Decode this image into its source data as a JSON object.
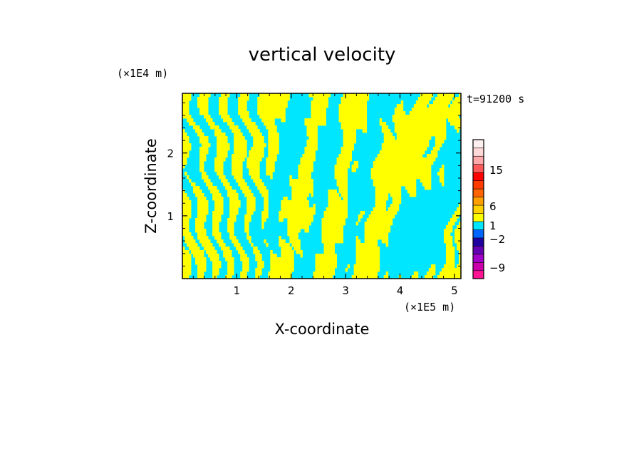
{
  "chart_data": {
    "type": "heatmap",
    "title": "vertical velocity",
    "xlabel": "X-coordinate",
    "ylabel": "Z-coordinate",
    "x_scale_note": "(×1E5 m)",
    "y_scale_note": "(×1E4 m)",
    "time_label": "t=91200 s",
    "xlim": [
      0,
      5.12
    ],
    "ylim": [
      0,
      2.95
    ],
    "x_ticks": [
      1,
      2,
      3,
      4,
      5
    ],
    "y_ticks": [
      1,
      2
    ],
    "x_tick_labels": [
      "1",
      "2",
      "3",
      "4",
      "5"
    ],
    "y_tick_labels": [
      "1",
      "2"
    ],
    "colorbar": {
      "tick_labels": [
        "15",
        "6",
        "1",
        "−2",
        "−9"
      ],
      "levels": [
        {
          "color": "#ff1493"
        },
        {
          "color": "#cc00aa"
        },
        {
          "color": "#a000c8"
        },
        {
          "color": "#6400b4"
        },
        {
          "color": "#1e00a0"
        },
        {
          "color": "#0064ff"
        },
        {
          "color": "#00e6ff"
        },
        {
          "color": "#ffff00"
        },
        {
          "color": "#ffd200"
        },
        {
          "color": "#ffa000"
        },
        {
          "color": "#ff6400"
        },
        {
          "color": "#ff3c00"
        },
        {
          "color": "#ff0000"
        },
        {
          "color": "#ff5a5a"
        },
        {
          "color": "#ffaaaa"
        },
        {
          "color": "#ffd8d8"
        },
        {
          "color": "#fff0f0"
        }
      ]
    },
    "field_colors": {
      "positive": "#ffff00",
      "negative": "#00e6ff"
    }
  }
}
